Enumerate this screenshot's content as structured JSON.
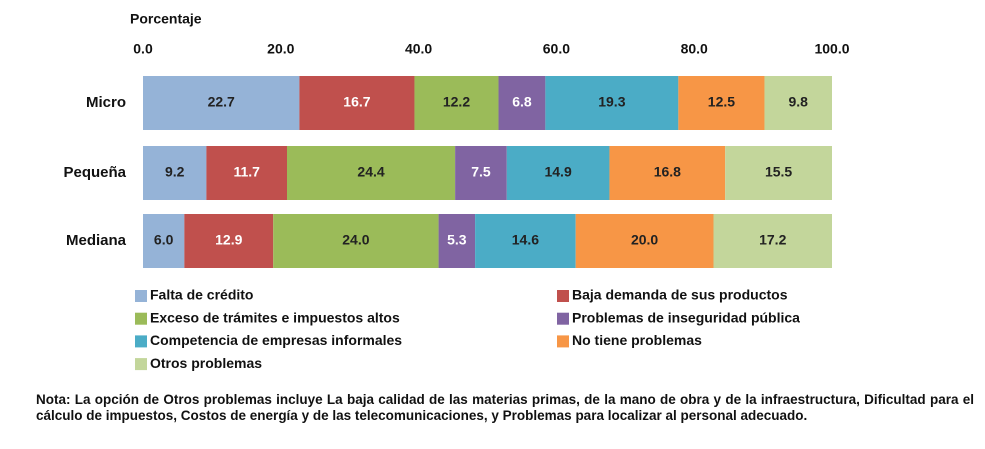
{
  "chart_data": {
    "type": "stacked-barh",
    "x_label": "Porcentaje",
    "categories": [
      "Micro",
      "Pequeña",
      "Mediana"
    ],
    "series": [
      {
        "name": "Falta de crédito",
        "color": "#95b3d7",
        "label_color": "#222",
        "values": [
          22.7,
          9.2,
          6.0
        ],
        "value_labels": [
          "22.7",
          "9.2",
          "6.0"
        ]
      },
      {
        "name": "Baja demanda de sus productos",
        "color": "#c0504d",
        "label_color": "#fff",
        "values": [
          16.7,
          11.7,
          12.9
        ],
        "value_labels": [
          "16.7",
          "11.7",
          "12.9"
        ]
      },
      {
        "name": "Exceso de trámites e impuestos altos",
        "color": "#9bbb59",
        "label_color": "#222",
        "values": [
          12.2,
          24.4,
          24.0
        ],
        "value_labels": [
          "12.2",
          "24.4",
          "24.0"
        ]
      },
      {
        "name": "Problemas de inseguridad pública",
        "color": "#8064a2",
        "label_color": "#fff",
        "values": [
          6.8,
          7.5,
          5.3
        ],
        "value_labels": [
          "6.8",
          "7.5",
          "5.3"
        ]
      },
      {
        "name": "Competencia de empresas informales",
        "color": "#4bacc6",
        "label_color": "#222",
        "values": [
          19.3,
          14.9,
          14.6
        ],
        "value_labels": [
          "19.3",
          "14.9",
          "14.6"
        ]
      },
      {
        "name": "No tiene problemas",
        "color": "#f79646",
        "label_color": "#222",
        "values": [
          12.5,
          16.8,
          20.0
        ],
        "value_labels": [
          "12.5",
          "16.8",
          "20.0"
        ]
      },
      {
        "name": "Otros problemas",
        "color": "#c3d69b",
        "label_color": "#222",
        "values": [
          9.8,
          15.5,
          17.2
        ],
        "value_labels": [
          "9.8",
          "15.5",
          "17.2"
        ]
      }
    ],
    "xlim": [
      0,
      100
    ],
    "xticks": [
      {
        "value": 0,
        "label": "0.0"
      },
      {
        "value": 20,
        "label": "20.0"
      },
      {
        "value": 40,
        "label": "40.0"
      },
      {
        "value": 60,
        "label": "60.0"
      },
      {
        "value": 80,
        "label": "80.0"
      },
      {
        "value": 100,
        "label": "100.0"
      }
    ],
    "legend": "bottom",
    "note": "Nota: La opción de Otros problemas incluye La baja calidad de las materias primas, de la mano de obra y de la infraestructura, Dificultad para el cálculo de impuestos, Costos de energía y de las telecomunicaciones, y Problemas para localizar al personal adecuado."
  }
}
